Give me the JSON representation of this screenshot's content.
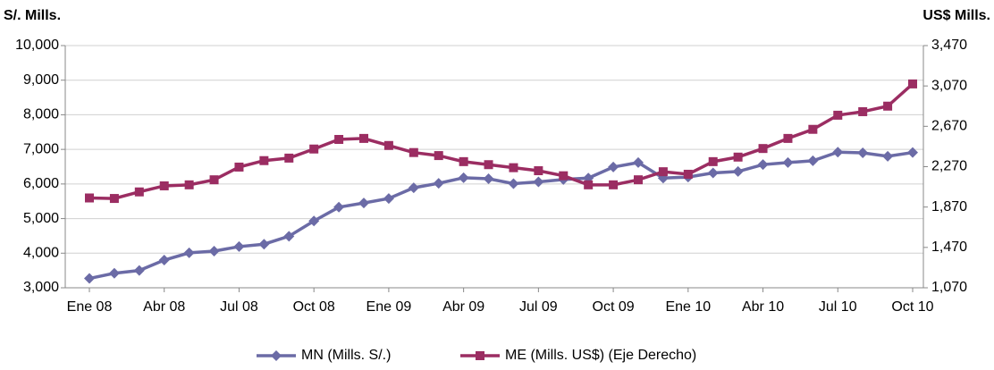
{
  "chart_data": {
    "type": "line",
    "ylabel": "S/. Mills.",
    "y2label": "US$ Mills.",
    "categories": [
      "Ene 08",
      null,
      null,
      "Abr 08",
      null,
      null,
      "Jul 08",
      null,
      null,
      "Oct 08",
      null,
      null,
      "Ene 09",
      null,
      null,
      "Abr 09",
      null,
      null,
      "Jul 09",
      null,
      null,
      "Oct 09",
      null,
      null,
      "Ene 10",
      null,
      null,
      "Abr 10",
      null,
      null,
      "Jul 10",
      null,
      null,
      "Oct 10"
    ],
    "series": [
      {
        "name": "MN (Mills. S/.)",
        "color": "#6b6ba6",
        "marker": "diamond",
        "values": [
          3270,
          3420,
          3500,
          3800,
          4010,
          4060,
          4190,
          4260,
          4490,
          4930,
          5330,
          5450,
          5580,
          5890,
          6020,
          6180,
          6150,
          6010,
          6060,
          6130,
          6170,
          6490,
          6620,
          6170,
          6200,
          6320,
          6360,
          6560,
          6620,
          6670,
          6920,
          6900,
          6800,
          6910
        ]
      },
      {
        "name": "ME (Mills. US$) (Eje Derecho)",
        "color": "#9b2d62",
        "marker": "square",
        "axis": "y2",
        "values": [
          1960,
          1955,
          2020,
          2080,
          2090,
          2140,
          2266,
          2330,
          2355,
          2445,
          2540,
          2550,
          2480,
          2410,
          2380,
          2320,
          2290,
          2260,
          2230,
          2180,
          2090,
          2090,
          2140,
          2220,
          2195,
          2320,
          2365,
          2450,
          2550,
          2640,
          2780,
          2815,
          2870,
          3090
        ]
      }
    ],
    "ylim": [
      3000,
      10000
    ],
    "yticks": [
      {
        "value": 3000,
        "label": "3,000"
      },
      {
        "value": 4000,
        "label": "4,000"
      },
      {
        "value": 5000,
        "label": "5,000"
      },
      {
        "value": 6000,
        "label": "6,000"
      },
      {
        "value": 7000,
        "label": "7,000"
      },
      {
        "value": 8000,
        "label": "8,000"
      },
      {
        "value": 9000,
        "label": "9,000"
      },
      {
        "value": 10000,
        "label": "10,000"
      }
    ],
    "y2lim": [
      1070,
      3470
    ],
    "y2ticks": [
      {
        "value": 1070,
        "label": "1,070"
      },
      {
        "value": 1470,
        "label": "1,470"
      },
      {
        "value": 1870,
        "label": "1,870"
      },
      {
        "value": 2270,
        "label": "2,270"
      },
      {
        "value": 2670,
        "label": "2,670"
      },
      {
        "value": 3070,
        "label": "3,070"
      },
      {
        "value": 3470,
        "label": "3,470"
      }
    ],
    "grid": true,
    "legend": "bottom"
  }
}
